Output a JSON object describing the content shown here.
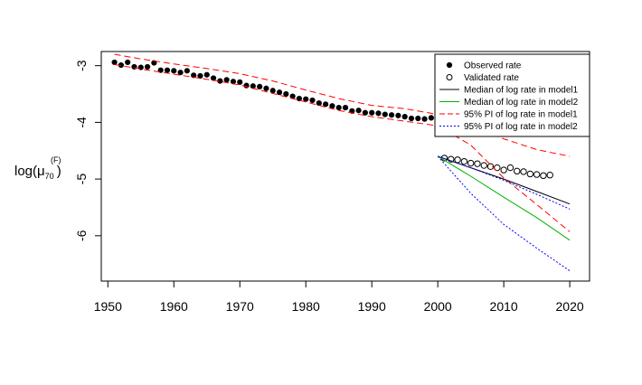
{
  "chart_data": {
    "type": "line",
    "title": "",
    "xlabel": "",
    "ylabel": {
      "base": "log(",
      "symbol": "μ",
      "subscript": "70",
      "superscript": "(F)",
      "close": ")"
    },
    "xlim": [
      1949,
      2023
    ],
    "ylim": [
      -6.8,
      -2.75
    ],
    "x_ticks": [
      1950,
      1960,
      1970,
      1980,
      1990,
      2000,
      2010,
      2020
    ],
    "y_ticks": [
      -3,
      -4,
      -5,
      -6
    ],
    "x_tick_labels": [
      "1950",
      "1960",
      "1970",
      "1980",
      "1990",
      "2000",
      "2010",
      "2020"
    ],
    "y_tick_labels": [
      "-3",
      "-4",
      "-5",
      "-6"
    ],
    "legend_position": "top-right",
    "legend": [
      {
        "label": "Observed rate",
        "style": "filled-point",
        "color": "#000000"
      },
      {
        "label": "Validated rate",
        "style": "open-point",
        "color": "#000000"
      },
      {
        "label": "Median of log rate in model1",
        "style": "solid",
        "color": "#000000"
      },
      {
        "label": "Median of log rate in model2",
        "style": "solid",
        "color": "#00b000"
      },
      {
        "label": "95% PI of log rate in model1",
        "style": "dashed",
        "color": "#ff0000"
      },
      {
        "label": "95% PI of log rate in model2",
        "style": "dotted",
        "color": "#0000ff"
      }
    ],
    "series": [
      {
        "name": "Observed rate",
        "kind": "points-filled",
        "color": "#000000",
        "x": [
          1951,
          1952,
          1953,
          1954,
          1955,
          1956,
          1957,
          1958,
          1959,
          1960,
          1961,
          1962,
          1963,
          1964,
          1965,
          1966,
          1967,
          1968,
          1969,
          1970,
          1971,
          1972,
          1973,
          1974,
          1975,
          1976,
          1977,
          1978,
          1979,
          1980,
          1981,
          1982,
          1983,
          1984,
          1985,
          1986,
          1987,
          1988,
          1989,
          1990,
          1991,
          1992,
          1993,
          1994,
          1995,
          1996,
          1997,
          1998,
          1999,
          2000
        ],
        "y": [
          -2.94,
          -2.99,
          -2.94,
          -3.02,
          -3.03,
          -3.02,
          -2.95,
          -3.08,
          -3.08,
          -3.09,
          -3.12,
          -3.09,
          -3.17,
          -3.18,
          -3.16,
          -3.22,
          -3.27,
          -3.25,
          -3.28,
          -3.29,
          -3.35,
          -3.36,
          -3.37,
          -3.4,
          -3.44,
          -3.47,
          -3.5,
          -3.54,
          -3.58,
          -3.59,
          -3.61,
          -3.66,
          -3.68,
          -3.71,
          -3.74,
          -3.74,
          -3.8,
          -3.79,
          -3.83,
          -3.83,
          -3.84,
          -3.86,
          -3.87,
          -3.88,
          -3.9,
          -3.93,
          -3.93,
          -3.94,
          -3.92,
          -3.98
        ]
      },
      {
        "name": "Validated rate",
        "kind": "points-open",
        "color": "#000000",
        "x": [
          2001,
          2002,
          2003,
          2004,
          2005,
          2006,
          2007,
          2008,
          2009,
          2010,
          2011,
          2012,
          2013,
          2014,
          2015,
          2016,
          2017
        ],
        "y": [
          -4.63,
          -4.65,
          -4.66,
          -4.69,
          -4.72,
          -4.73,
          -4.76,
          -4.78,
          -4.8,
          -4.84,
          -4.8,
          -4.86,
          -4.87,
          -4.91,
          -4.92,
          -4.94,
          -4.93
        ]
      },
      {
        "name": "Median of log rate in model1",
        "kind": "line",
        "color": "#000000",
        "x": [
          2000,
          2005,
          2010,
          2015,
          2020
        ],
        "y": [
          -4.6,
          -4.8,
          -5.0,
          -5.22,
          -5.44
        ]
      },
      {
        "name": "Median of log rate in model2",
        "kind": "line",
        "color": "#00b000",
        "x": [
          2000,
          2005,
          2010,
          2015,
          2020
        ],
        "y": [
          -4.6,
          -4.95,
          -5.32,
          -5.68,
          -6.08
        ]
      },
      {
        "name": "95% PI of log rate in model1 (upper)",
        "kind": "dashed",
        "color": "#ff0000",
        "x": [
          1951,
          1955,
          1960,
          1965,
          1970,
          1975,
          1980,
          1985,
          1990,
          1995,
          2000,
          2005,
          2010,
          2015,
          2020
        ],
        "y": [
          -2.8,
          -2.88,
          -2.97,
          -3.05,
          -3.14,
          -3.27,
          -3.43,
          -3.58,
          -3.7,
          -3.76,
          -3.86,
          -4.05,
          -4.29,
          -4.48,
          -4.6
        ]
      },
      {
        "name": "95% PI of log rate in model1 (lower)",
        "kind": "dashed",
        "color": "#ff0000",
        "x": [
          1951,
          1955,
          1960,
          1965,
          1970,
          1975,
          1980,
          1985,
          1990,
          1995,
          2000,
          2005,
          2010,
          2015,
          2020
        ],
        "y": [
          -2.98,
          -3.06,
          -3.15,
          -3.24,
          -3.34,
          -3.49,
          -3.64,
          -3.79,
          -3.9,
          -3.98,
          -4.06,
          -4.4,
          -4.98,
          -5.45,
          -5.93
        ]
      },
      {
        "name": "95% PI of log rate in model2 (upper)",
        "kind": "dotted",
        "color": "#0000ff",
        "x": [
          2000,
          2005,
          2010,
          2015,
          2020
        ],
        "y": [
          -4.6,
          -4.8,
          -5.02,
          -5.27,
          -5.53
        ]
      },
      {
        "name": "95% PI of log rate in model2 (lower)",
        "kind": "dotted",
        "color": "#0000ff",
        "x": [
          2000,
          2005,
          2010,
          2015,
          2020
        ],
        "y": [
          -4.6,
          -5.25,
          -5.8,
          -6.22,
          -6.62
        ]
      }
    ]
  }
}
